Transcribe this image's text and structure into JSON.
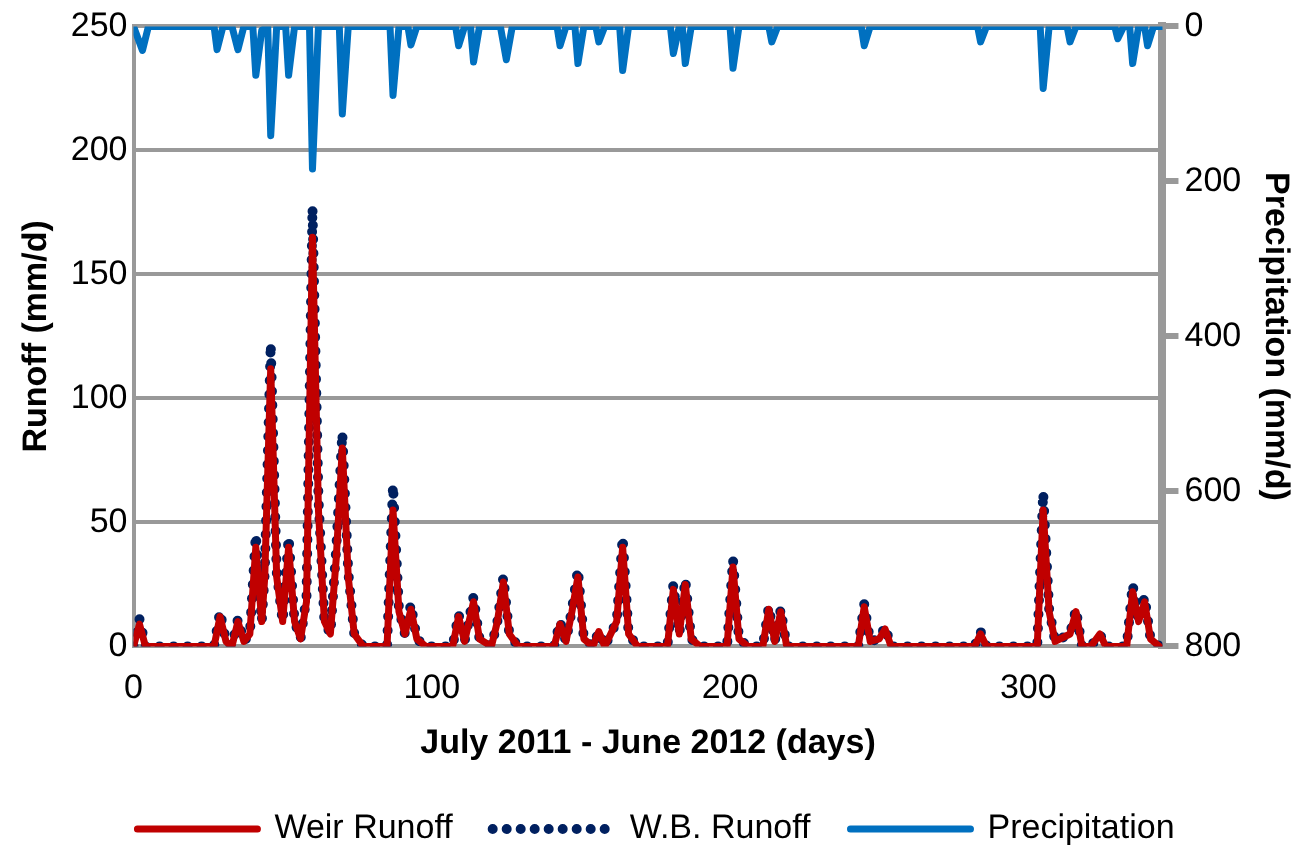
{
  "chart_data": {
    "type": "line",
    "xlabel": "July 2011 - June 2012 (days)",
    "ylabel": "Runoff (mm/d)",
    "y2label": "Precipitation (mm/d)",
    "xlim": [
      0,
      345
    ],
    "xticks": [
      0,
      100,
      200,
      300
    ],
    "ylim": [
      0,
      250
    ],
    "yticks": [
      0,
      50,
      100,
      150,
      200,
      250
    ],
    "y2lim": [
      800,
      0
    ],
    "y2ticks": [
      0,
      200,
      400,
      600,
      800
    ],
    "grid": "y",
    "legend": "bottom",
    "marker": "none",
    "series": [
      {
        "name": "Weir Runoff",
        "color": "#c00000",
        "line_style": "solid",
        "x": [
          0,
          2,
          4,
          27,
          29,
          31,
          33,
          35,
          37,
          39,
          41,
          43,
          44,
          46,
          48,
          50,
          52,
          54,
          56,
          58,
          60,
          62,
          64,
          66,
          68,
          70,
          72,
          74,
          77,
          85,
          87,
          89,
          91,
          93,
          95,
          98,
          107,
          109,
          111,
          114,
          116,
          120,
          122,
          124,
          126,
          129,
          141,
          143,
          145,
          147,
          149,
          151,
          154,
          156,
          158,
          162,
          164,
          166,
          169,
          179,
          181,
          183,
          185,
          187,
          190,
          199,
          201,
          203,
          206,
          211,
          213,
          215,
          217,
          219,
          243,
          245,
          247,
          250,
          252,
          254,
          282,
          284,
          286,
          303,
          305,
          307,
          309,
          314,
          316,
          318,
          321,
          324,
          326,
          333,
          335,
          337,
          339,
          341,
          344
        ],
        "values": [
          0,
          9,
          0,
          0,
          12,
          2,
          0,
          10,
          2,
          5,
          40,
          10,
          28,
          112,
          28,
          10,
          40,
          10,
          3,
          18,
          165,
          55,
          10,
          5,
          36,
          80,
          28,
          5,
          0,
          0,
          55,
          14,
          5,
          15,
          3,
          0,
          0,
          12,
          2,
          18,
          3,
          0,
          10,
          26,
          5,
          0,
          0,
          9,
          2,
          14,
          28,
          3,
          0,
          6,
          0,
          10,
          40,
          5,
          0,
          0,
          23,
          5,
          25,
          3,
          0,
          0,
          32,
          3,
          0,
          0,
          15,
          2,
          14,
          0,
          0,
          16,
          2,
          3,
          7,
          0,
          0,
          5,
          0,
          0,
          55,
          14,
          2,
          5,
          14,
          0,
          0,
          5,
          0,
          0,
          22,
          10,
          18,
          3,
          0
        ]
      },
      {
        "name": "W.B. Runoff",
        "color": "#002060",
        "line_style": "dotted",
        "x": [
          0,
          2,
          4,
          27,
          29,
          31,
          33,
          35,
          37,
          39,
          41,
          43,
          44,
          46,
          48,
          50,
          52,
          54,
          56,
          58,
          60,
          62,
          64,
          66,
          68,
          70,
          72,
          74,
          77,
          85,
          87,
          89,
          91,
          93,
          95,
          98,
          107,
          109,
          111,
          114,
          116,
          120,
          122,
          124,
          126,
          129,
          141,
          143,
          145,
          147,
          149,
          151,
          154,
          156,
          158,
          162,
          164,
          166,
          169,
          179,
          181,
          183,
          185,
          187,
          190,
          199,
          201,
          203,
          206,
          211,
          213,
          215,
          217,
          219,
          243,
          245,
          247,
          250,
          252,
          254,
          282,
          284,
          286,
          303,
          305,
          307,
          309,
          314,
          316,
          318,
          321,
          324,
          326,
          333,
          335,
          337,
          339,
          341,
          344
        ],
        "values": [
          0,
          11,
          0,
          0,
          14,
          2,
          0,
          11,
          2,
          5,
          45,
          10,
          30,
          122,
          30,
          10,
          44,
          10,
          3,
          20,
          177,
          60,
          10,
          5,
          40,
          86,
          30,
          5,
          0,
          0,
          65,
          15,
          5,
          17,
          3,
          0,
          0,
          13,
          2,
          20,
          3,
          0,
          10,
          28,
          5,
          0,
          0,
          10,
          2,
          15,
          31,
          3,
          0,
          6,
          0,
          10,
          44,
          5,
          0,
          0,
          25,
          5,
          27,
          3,
          0,
          0,
          35,
          3,
          0,
          0,
          16,
          2,
          15,
          0,
          0,
          17,
          2,
          3,
          8,
          0,
          0,
          6,
          0,
          0,
          62,
          15,
          2,
          5,
          15,
          0,
          0,
          5,
          0,
          0,
          25,
          10,
          20,
          3,
          0
        ]
      },
      {
        "name": "Precipitation",
        "color": "#0070c0",
        "line_style": "solid",
        "axis": "y2",
        "x": [
          0,
          3,
          5,
          27,
          28,
          30,
          33,
          35,
          37,
          40,
          41,
          43,
          45,
          46,
          48,
          51,
          52,
          54,
          59,
          60,
          62,
          69,
          70,
          72,
          86,
          87,
          89,
          92,
          93,
          95,
          108,
          109,
          111,
          113,
          114,
          116,
          123,
          125,
          127,
          142,
          143,
          145,
          148,
          149,
          151,
          155,
          156,
          158,
          163,
          164,
          166,
          180,
          181,
          183,
          184,
          185,
          187,
          200,
          201,
          203,
          213,
          214,
          216,
          244,
          245,
          247,
          283,
          284,
          286,
          304,
          305,
          307,
          313,
          314,
          316,
          329,
          330,
          332,
          334,
          335,
          337,
          339,
          340,
          342,
          345
        ],
        "values": [
          0,
          31,
          0,
          0,
          30,
          0,
          0,
          30,
          0,
          0,
          63,
          5,
          0,
          141,
          0,
          0,
          63,
          0,
          0,
          184,
          0,
          0,
          113,
          0,
          0,
          89,
          0,
          0,
          24,
          0,
          0,
          25,
          0,
          0,
          46,
          0,
          0,
          43,
          0,
          0,
          25,
          0,
          0,
          48,
          0,
          0,
          20,
          0,
          0,
          57,
          0,
          0,
          35,
          0,
          0,
          48,
          0,
          0,
          54,
          0,
          0,
          20,
          0,
          0,
          25,
          0,
          0,
          20,
          0,
          0,
          80,
          0,
          0,
          20,
          0,
          0,
          16,
          0,
          0,
          48,
          0,
          0,
          25,
          0,
          0
        ]
      }
    ]
  }
}
